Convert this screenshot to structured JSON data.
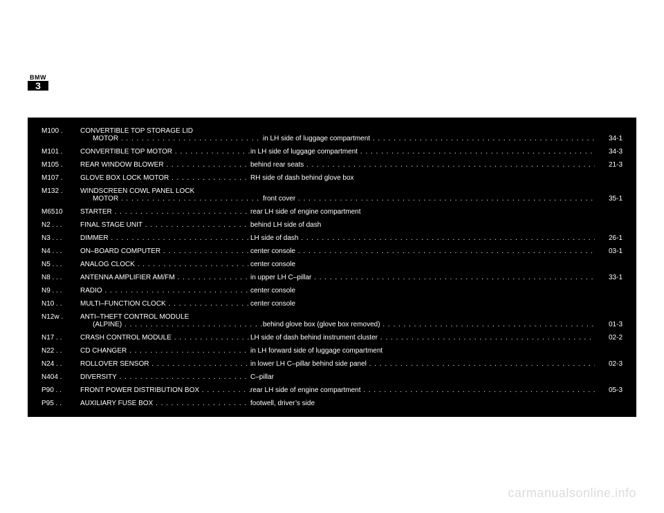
{
  "logo": {
    "top": "BMW",
    "num": "3"
  },
  "watermark": "carmanualsonline.info",
  "rows": [
    {
      "code": "M100",
      "codeDots": ".",
      "name": "CONVERTIBLE TOP STORAGE LID",
      "name2": "MOTOR",
      "loc": "in LH side of luggage compartment",
      "page": "34-1",
      "multiline": true,
      "name_dots": false,
      "name2_dots": true,
      "loc_dots": true
    },
    {
      "code": "M101",
      "codeDots": ".",
      "name": "CONVERTIBLE TOP MOTOR",
      "loc": "in LH side of luggage compartment",
      "page": "34-3",
      "name_dots": true,
      "loc_dots": true
    },
    {
      "code": "M105",
      "codeDots": ".",
      "name": "REAR WINDOW BLOWER",
      "loc": "behind rear seats",
      "page": "21-3",
      "name_dots": true,
      "loc_dots": true
    },
    {
      "code": "M107",
      "codeDots": ".",
      "name": "GLOVE BOX LOCK MOTOR",
      "loc": "RH side of dash behind glove box",
      "page": "",
      "name_dots": true,
      "loc_dots": false
    },
    {
      "code": "M132",
      "codeDots": ".",
      "name": "WINDSCREEN COWL PANEL LOCK",
      "name2": "MOTOR",
      "loc": "front cover",
      "page": "35-1",
      "multiline": true,
      "name_dots": false,
      "name2_dots": true,
      "loc_dots": true
    },
    {
      "code": "M6510",
      "codeDots": "",
      "name": "STARTER",
      "loc": "rear LH side of engine compartment",
      "page": "",
      "name_dots": true,
      "loc_dots": false
    },
    {
      "code": "N2",
      "codeDots": ". . .",
      "name": "FINAL STAGE UNIT",
      "loc": "behind LH side of dash",
      "page": "",
      "name_dots": true,
      "loc_dots": false
    },
    {
      "code": "N3",
      "codeDots": ". . .",
      "name": "DIMMER",
      "loc": "LH side of dash",
      "page": "26-1",
      "name_dots": true,
      "loc_dots": true
    },
    {
      "code": "N4",
      "codeDots": ". . .",
      "name": "ON–BOARD COMPUTER",
      "loc": "center console",
      "page": "03-1",
      "name_dots": true,
      "loc_dots": true
    },
    {
      "code": "N5",
      "codeDots": ". . .",
      "name": "ANALOG CLOCK",
      "loc": "center console",
      "page": "",
      "name_dots": true,
      "loc_dots": false
    },
    {
      "code": "N8",
      "codeDots": ". . .",
      "name": "ANTENNA AMPLIFIER AM/FM",
      "loc": "in upper LH C–pillar",
      "page": "33-1",
      "name_dots": true,
      "loc_dots": true
    },
    {
      "code": "N9",
      "codeDots": ". . .",
      "name": "RADIO",
      "loc": "center console",
      "page": "",
      "name_dots": true,
      "loc_dots": false
    },
    {
      "code": "N10",
      "codeDots": ". .",
      "name": "MULTI–FUNCTION CLOCK",
      "loc": "center console",
      "page": "",
      "name_dots": true,
      "loc_dots": false
    },
    {
      "code": "N12w",
      "codeDots": ".",
      "name": "ANTI–THEFT CONTROL MODULE",
      "name2": "(ALPINE)",
      "loc": "behind glove box (glove box removed)",
      "page": "01-3",
      "multiline": true,
      "name_dots": false,
      "name2_dots": true,
      "loc_dots": true
    },
    {
      "code": "N17",
      "codeDots": ". .",
      "name": "CRASH CONTROL MODULE",
      "loc": "LH side of dash behind instrument cluster",
      "page": "02-2",
      "name_dots": true,
      "loc_dots": true
    },
    {
      "code": "N22",
      "codeDots": ". .",
      "name": "CD CHANGER",
      "loc": "in LH forward side of luggage compartment",
      "page": "",
      "name_dots": true,
      "loc_dots": false
    },
    {
      "code": "N24",
      "codeDots": ". .",
      "name": "ROLLOVER SENSOR",
      "loc": "in lower LH C–pillar behind side panel",
      "page": "02-3",
      "name_dots": true,
      "loc_dots": true
    },
    {
      "code": "N404",
      "codeDots": ".",
      "name": "DIVERSITY",
      "loc": "C–pillar",
      "page": "",
      "name_dots": true,
      "loc_dots": false
    },
    {
      "code": "P90",
      "codeDots": ". .",
      "name": "FRONT POWER DISTRIBUTION BOX",
      "loc": "rear LH side of engine compartment",
      "page": "05-3",
      "name_dots": true,
      "loc_dots": true
    },
    {
      "code": "P95",
      "codeDots": ". .",
      "name": "AUXILIARY FUSE BOX",
      "loc": "footwell, driver’s side",
      "page": "",
      "name_dots": true,
      "loc_dots": false
    }
  ]
}
